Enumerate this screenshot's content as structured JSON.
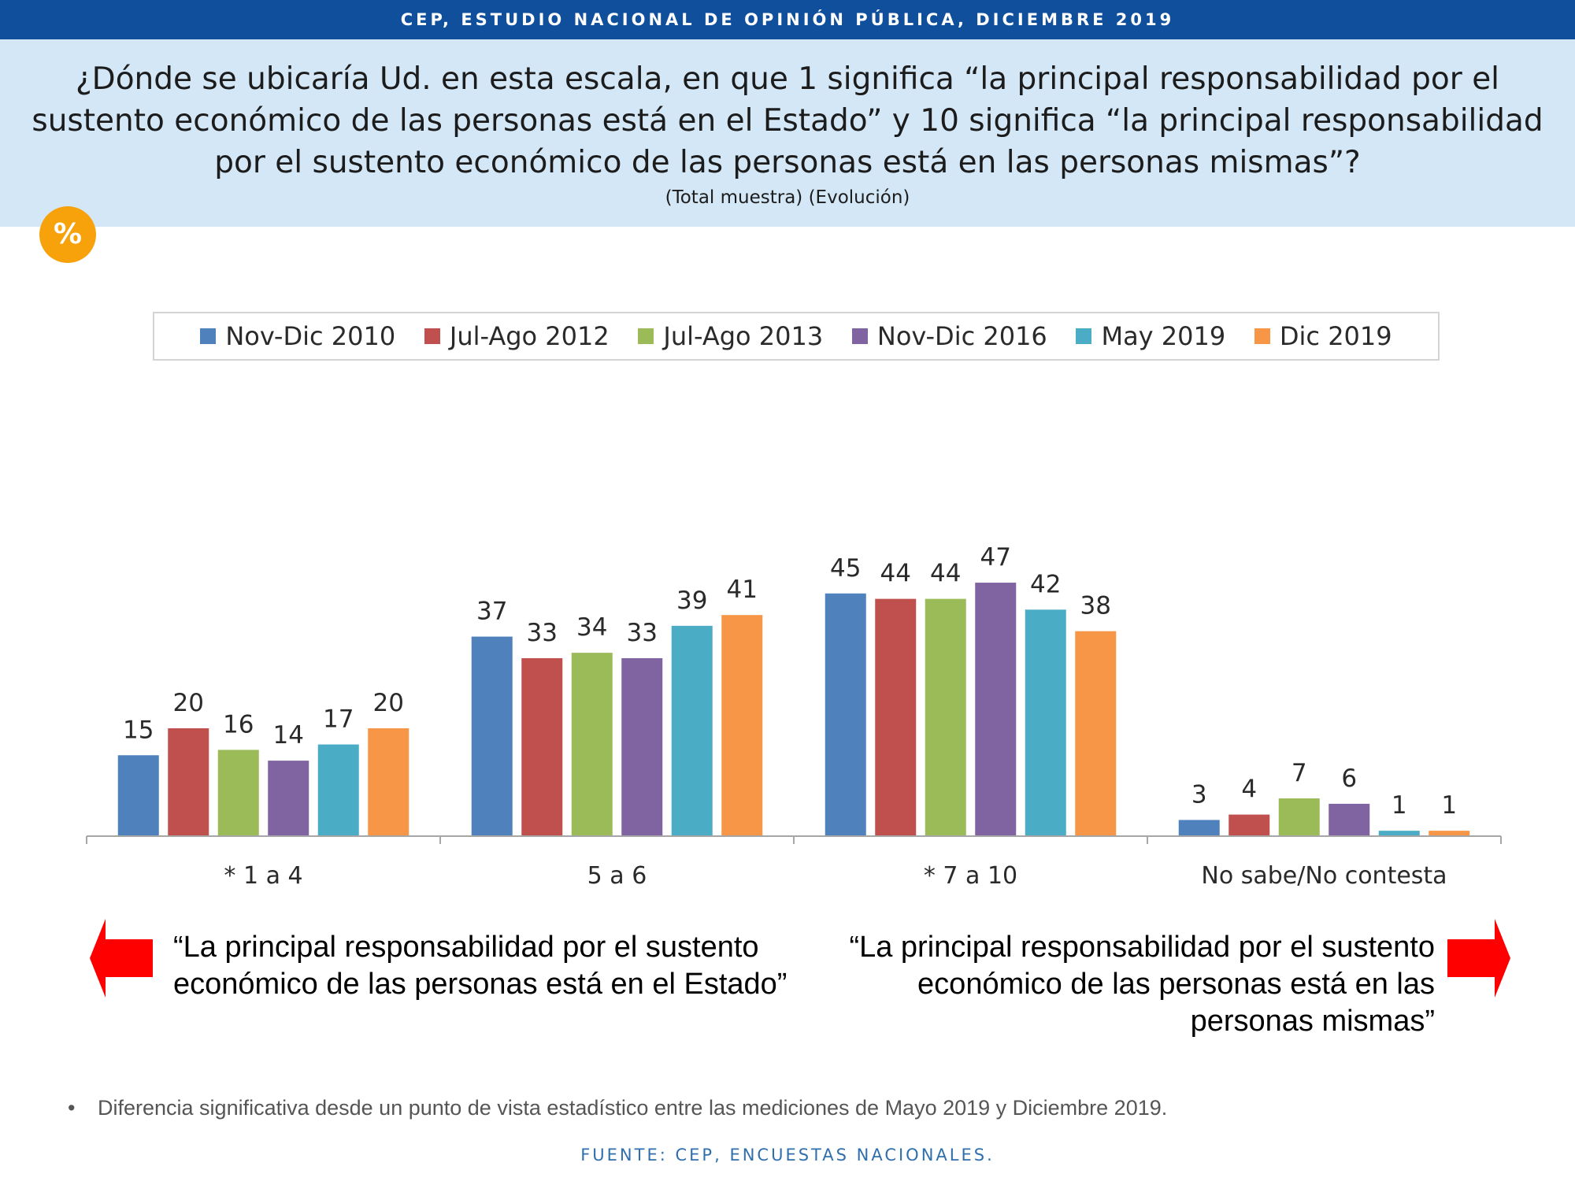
{
  "header": {
    "banner": "CEP, ESTUDIO NACIONAL DE OPINIÓN PÚBLICA, DICIEMBRE 2019",
    "question": "¿Dónde se ubicaría Ud. en esta escala, en que 1 significa “la principal responsabilidad por el sustento económico de las personas está en el Estado” y 10 significa “la principal responsabilidad por el sustento económico de las personas está en las personas mismas”?",
    "subtitle": "(Total muestra) (Evolución)",
    "badge": "%"
  },
  "chart_data": {
    "type": "bar",
    "categories": [
      "* 1 a 4",
      "5 a 6",
      "* 7 a 10",
      "No sabe/No contesta"
    ],
    "series": [
      {
        "name": "Nov-Dic 2010",
        "color": "#4f81bd",
        "values": [
          15,
          37,
          45,
          3
        ]
      },
      {
        "name": "Jul-Ago 2012",
        "color": "#c0504d",
        "values": [
          20,
          33,
          44,
          4
        ]
      },
      {
        "name": "Jul-Ago 2013",
        "color": "#9bbb59",
        "values": [
          16,
          34,
          44,
          7
        ]
      },
      {
        "name": "Nov-Dic 2016",
        "color": "#8064a2",
        "values": [
          14,
          33,
          47,
          6
        ]
      },
      {
        "name": "May 2019",
        "color": "#4bacc6",
        "values": [
          17,
          39,
          42,
          1
        ]
      },
      {
        "name": "Dic 2019",
        "color": "#f79646",
        "values": [
          20,
          41,
          38,
          1
        ]
      }
    ],
    "legend_position": "top",
    "grid": false,
    "data_labels": true
  },
  "annotations": {
    "left_text": "“La principal responsabilidad por el sustento económico de las personas está en el Estado”",
    "right_text": "“La principal responsabilidad por el sustento económico de las personas está en las personas mismas”",
    "arrow_color": "#ff0000"
  },
  "footer": {
    "bullet": "•",
    "footnote": "Diferencia significativa desde un punto de vista estadístico entre las mediciones de Mayo 2019 y Diciembre 2019.",
    "source": "FUENTE: CEP, ENCUESTAS NACIONALES."
  }
}
